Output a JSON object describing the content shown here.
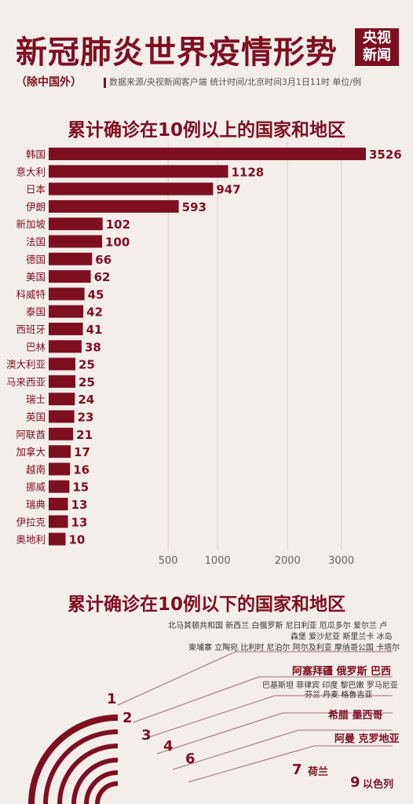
{
  "header": {
    "title": "新冠肺炎世界疫情形势",
    "subtitle": "（除中国外）",
    "source": "数据来源/央视新闻客户端    统计时间/北京时间3月1日11时    单位/例",
    "logo_line1": "央视",
    "logo_line2": "新闻"
  },
  "colors": {
    "bar": "#7e0f22",
    "background": "#f3eee9",
    "accent": "#7e0f22"
  },
  "section_upper": "累计确诊在10例以上的国家和地区",
  "section_lower": "累计确诊在10例以下的国家和地区",
  "chart_data": {
    "type": "bar",
    "orientation": "horizontal",
    "scale": "sqrt",
    "title": "累计确诊在10例以上的国家和地区",
    "categories": [
      "韩国",
      "意大利",
      "日本",
      "伊朗",
      "新加坡",
      "法国",
      "德国",
      "美国",
      "科威特",
      "泰国",
      "西班牙",
      "巴林",
      "澳大利亚",
      "马来西亚",
      "瑞士",
      "英国",
      "阿联酋",
      "加拿大",
      "越南",
      "挪威",
      "瑞典",
      "伊拉克",
      "奥地利"
    ],
    "values": [
      3526,
      1128,
      947,
      593,
      102,
      100,
      66,
      62,
      45,
      42,
      41,
      38,
      25,
      25,
      24,
      23,
      21,
      17,
      16,
      15,
      13,
      13,
      10
    ],
    "xticks": [
      500,
      1000,
      2000,
      3000
    ],
    "xlim": [
      0,
      3526
    ],
    "grid": true
  },
  "lower_groups": [
    {
      "count": "1",
      "names": [
        "北马其顿共和国  新西兰  白俄罗斯  尼日利亚  厄瓜多尔  爱尔兰  卢",
        "森堡  爱沙尼亚  斯里兰卡  冰岛",
        "柬埔寨  立陶宛  比利时  尼泊尔  阿尔及利亚  摩纳哥公国  卡塔尔"
      ]
    },
    {
      "count": "2",
      "names": [
        "阿塞拜疆  俄罗斯  巴西",
        "巴基斯坦  菲律宾  印度  黎巴嫩  罗马尼亚",
        "芬兰  丹麦  格鲁吉亚"
      ]
    },
    {
      "count": "3",
      "names": []
    },
    {
      "count": "4",
      "names": [
        "希腊  墨西哥"
      ]
    },
    {
      "count": "6",
      "names": [
        "阿曼  克罗地亚"
      ]
    },
    {
      "count": "7",
      "names": [
        "荷兰"
      ]
    },
    {
      "count": "9",
      "names": [
        "以色列"
      ]
    }
  ]
}
